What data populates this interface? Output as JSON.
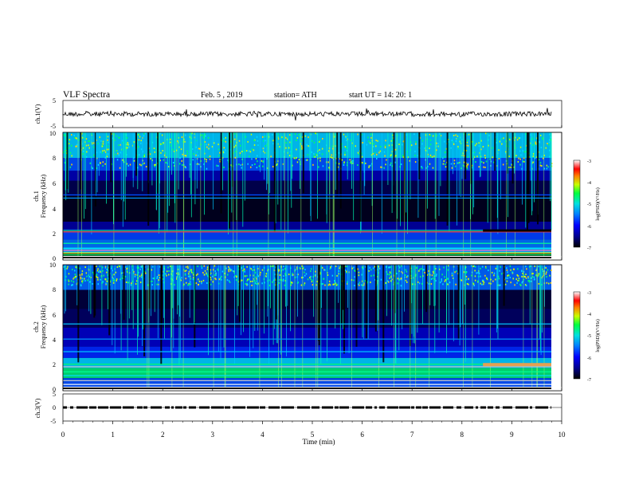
{
  "header": {
    "title": "VLF  Spectra",
    "date": "Feb. 5  , 2019",
    "station": "station= ATH",
    "start_ut": "start  UT  =    14: 20: 1"
  },
  "chart_data": [
    {
      "type": "line",
      "panel": "ch1-waveform",
      "ylabel": "ch.1(V)",
      "y_ticks": [
        "5",
        "-5"
      ],
      "ylim": [
        -5,
        5
      ],
      "xlim": [
        0,
        10
      ],
      "baseline": 0,
      "note_x_end_min": 9.8
    },
    {
      "type": "heatmap",
      "panel": "ch1-spectrogram",
      "ylabel": "Frequency  (kHz)",
      "channel_label": "ch.1",
      "y_ticks": [
        "10",
        "8",
        "6",
        "4",
        "2",
        "0"
      ],
      "ylim": [
        0,
        10
      ],
      "xlim": [
        0,
        10
      ],
      "data_x_end": 9.8,
      "colorbar": {
        "label": "log(PSD)(V²/Hz)",
        "ticks": [
          "-3",
          "-4",
          "-5",
          "-6",
          "-7"
        ],
        "range": [
          -7,
          -3
        ]
      }
    },
    {
      "type": "heatmap",
      "panel": "ch2-spectrogram",
      "ylabel": "Frequency  (kHz)",
      "channel_label": "ch.2",
      "y_ticks": [
        "10",
        "8",
        "6",
        "4",
        "2",
        "0"
      ],
      "ylim": [
        0,
        10
      ],
      "xlim": [
        0,
        10
      ],
      "data_x_end": 9.8,
      "colorbar": {
        "label": "log(PSD)(V²/Hz)",
        "ticks": [
          "-3",
          "-4",
          "-5",
          "-6",
          "-7"
        ],
        "range": [
          -7,
          -3
        ]
      }
    },
    {
      "type": "line",
      "panel": "ch3-signal",
      "ylabel": "ch.3(V)",
      "y_ticks": [
        "5",
        "0",
        "-5"
      ],
      "ylim": [
        -5,
        5
      ],
      "xlim": [
        0,
        10
      ],
      "level": 0
    }
  ],
  "xaxis": {
    "label": "Time  (min)",
    "ticks": [
      "0",
      "1",
      "2",
      "3",
      "4",
      "5",
      "6",
      "7",
      "8",
      "9",
      "10"
    ]
  },
  "colors": {
    "spectrogram_background": "#000033",
    "dark_blue": "#0000c8",
    "blue": "#0050ff",
    "cyan": "#00c8ff",
    "green": "#00ff40",
    "yellow_green": "#c8ff00",
    "orange": "#ff9000",
    "red": "#ff0000"
  }
}
